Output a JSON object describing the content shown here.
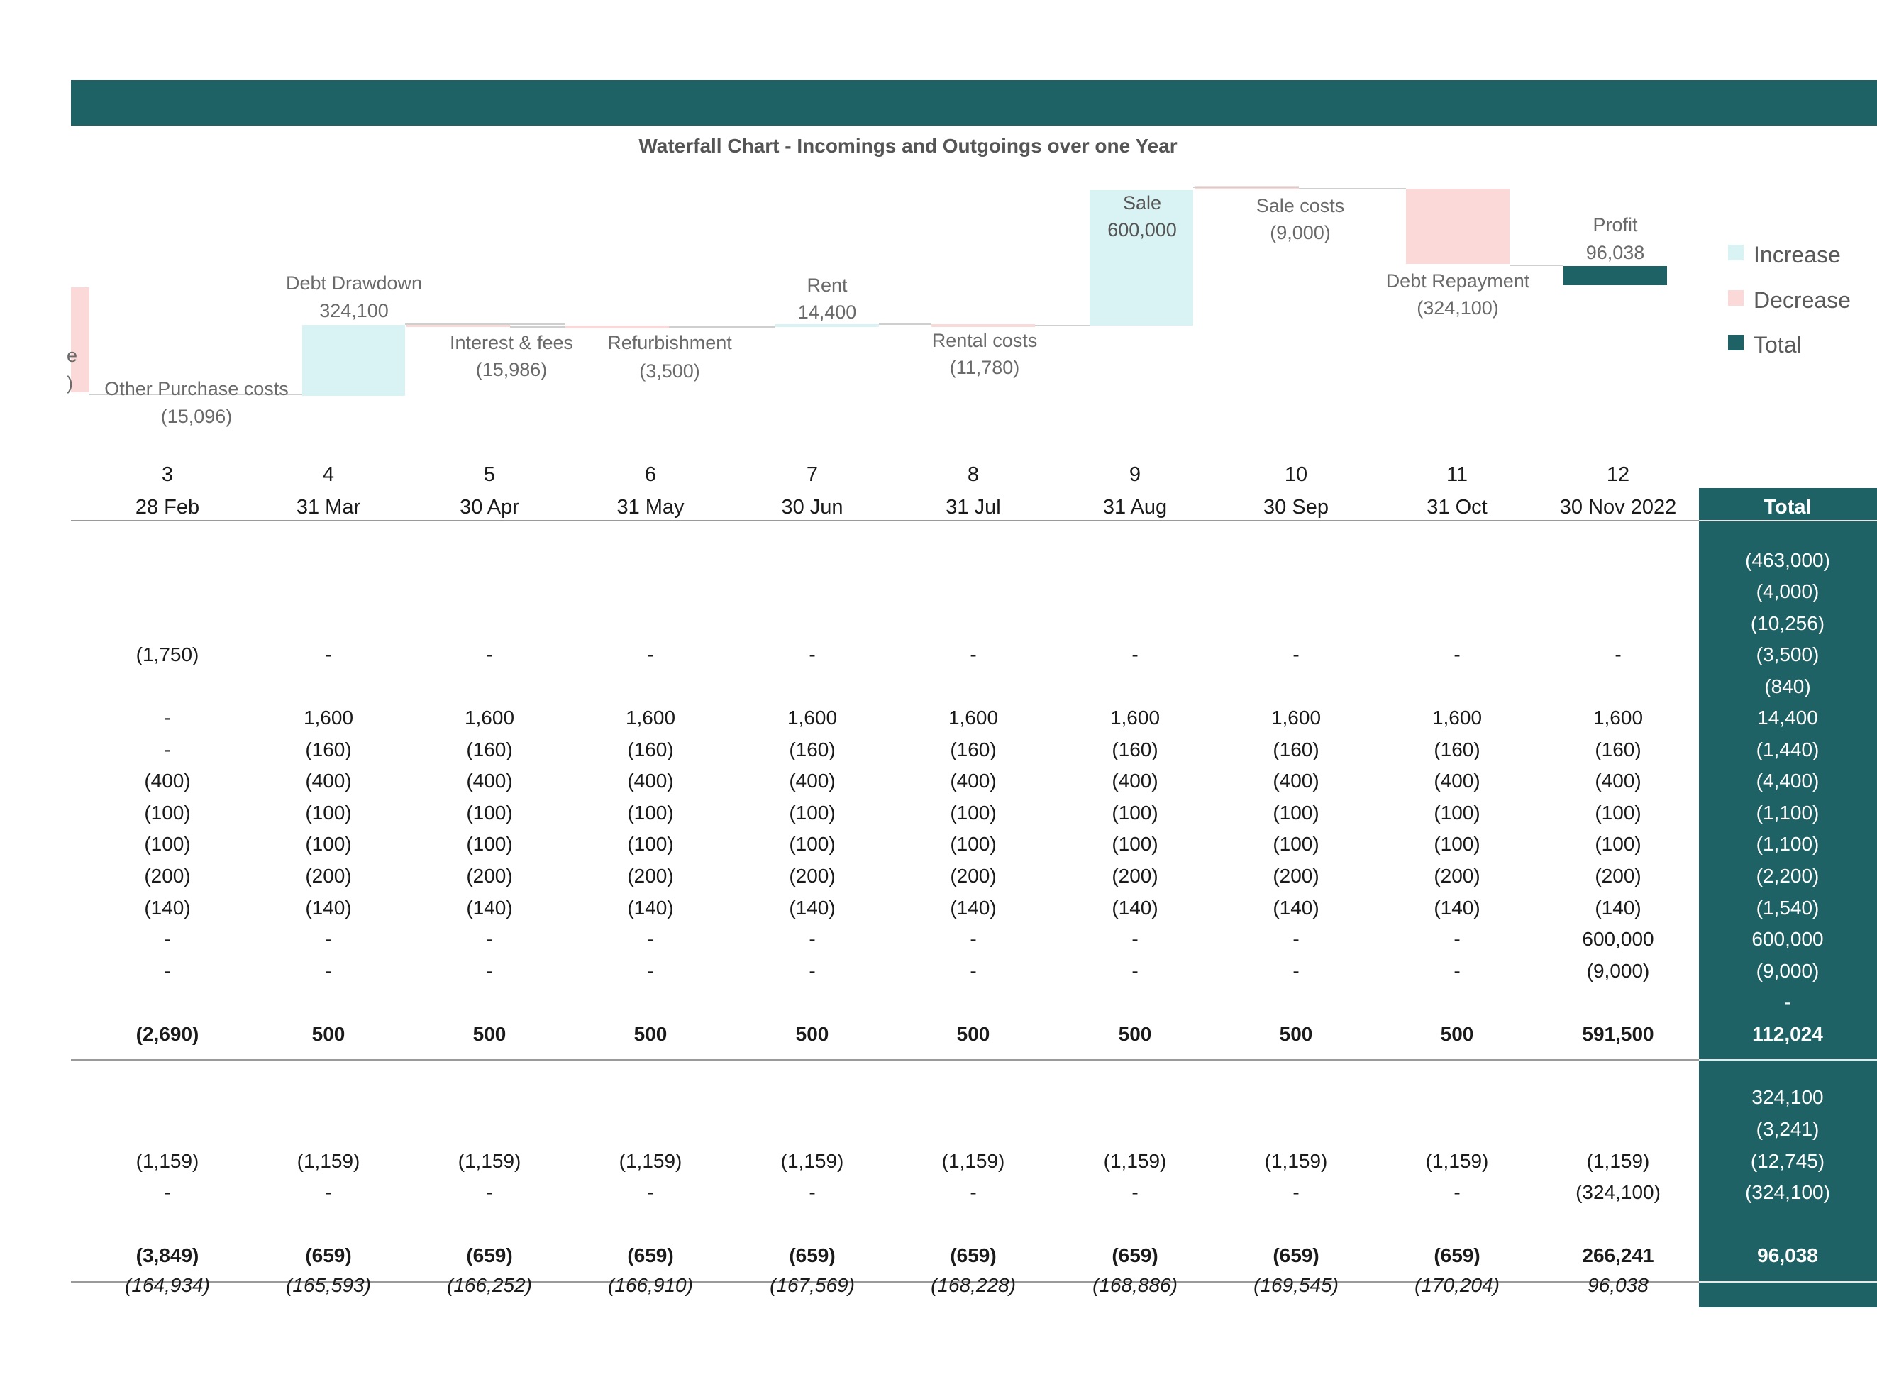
{
  "chart": {
    "title": "Waterfall Chart - Incomings and Outgoings over one Year",
    "labels": {
      "partial_left": [
        "e",
        ")"
      ],
      "other_purchase": [
        "Other Purchase costs",
        "(15,096)"
      ],
      "debt_drawdown": [
        "Debt Drawdown",
        "324,100"
      ],
      "interest_fees": [
        "Interest & fees",
        "(15,986)"
      ],
      "refurbishment": [
        "Refurbishment",
        "(3,500)"
      ],
      "rent": [
        "Rent",
        "14,400"
      ],
      "rental_costs": [
        "Rental costs",
        "(11,780)"
      ],
      "sale": [
        "Sale",
        "600,000"
      ],
      "sale_costs": [
        "Sale costs",
        "(9,000)"
      ],
      "debt_repayment": [
        "Debt Repayment",
        "(324,100)"
      ],
      "profit": [
        "Profit",
        "96,038"
      ]
    },
    "legend": [
      {
        "name": "Increase",
        "color": "#d9f2f4"
      },
      {
        "name": "Decrease",
        "color": "#fbd9d9"
      },
      {
        "name": "Total",
        "color": "#1f6266"
      }
    ]
  },
  "table": {
    "periods": [
      "3",
      "4",
      "5",
      "6",
      "7",
      "8",
      "9",
      "10",
      "11",
      "12"
    ],
    "dates": [
      "28 Feb",
      "31 Mar",
      "30 Apr",
      "31 May",
      "30 Jun",
      "31 Jul",
      "31 Aug",
      "30 Sep",
      "31 Oct",
      "30 Nov 2022"
    ],
    "total_header": "Total",
    "rows": [
      {
        "cells": [
          "",
          "",
          "",
          "",
          "",
          "",
          "",
          "",
          "",
          ""
        ],
        "total": "(463,000)"
      },
      {
        "cells": [
          "",
          "",
          "",
          "",
          "",
          "",
          "",
          "",
          "",
          ""
        ],
        "total": "(4,000)"
      },
      {
        "cells": [
          "",
          "",
          "",
          "",
          "",
          "",
          "",
          "",
          "",
          ""
        ],
        "total": "(10,256)"
      },
      {
        "cells": [
          "(1,750)",
          "-",
          "-",
          "-",
          "-",
          "-",
          "-",
          "-",
          "-",
          "-"
        ],
        "total": "(3,500)"
      },
      {
        "cells": [
          "",
          "",
          "",
          "",
          "",
          "",
          "",
          "",
          "",
          ""
        ],
        "total": "(840)"
      },
      {
        "cells": [
          "-",
          "1,600",
          "1,600",
          "1,600",
          "1,600",
          "1,600",
          "1,600",
          "1,600",
          "1,600",
          "1,600"
        ],
        "total": "14,400"
      },
      {
        "cells": [
          "-",
          "(160)",
          "(160)",
          "(160)",
          "(160)",
          "(160)",
          "(160)",
          "(160)",
          "(160)",
          "(160)"
        ],
        "total": "(1,440)"
      },
      {
        "cells": [
          "(400)",
          "(400)",
          "(400)",
          "(400)",
          "(400)",
          "(400)",
          "(400)",
          "(400)",
          "(400)",
          "(400)"
        ],
        "total": "(4,400)"
      },
      {
        "cells": [
          "(100)",
          "(100)",
          "(100)",
          "(100)",
          "(100)",
          "(100)",
          "(100)",
          "(100)",
          "(100)",
          "(100)"
        ],
        "total": "(1,100)"
      },
      {
        "cells": [
          "(100)",
          "(100)",
          "(100)",
          "(100)",
          "(100)",
          "(100)",
          "(100)",
          "(100)",
          "(100)",
          "(100)"
        ],
        "total": "(1,100)"
      },
      {
        "cells": [
          "(200)",
          "(200)",
          "(200)",
          "(200)",
          "(200)",
          "(200)",
          "(200)",
          "(200)",
          "(200)",
          "(200)"
        ],
        "total": "(2,200)"
      },
      {
        "cells": [
          "(140)",
          "(140)",
          "(140)",
          "(140)",
          "(140)",
          "(140)",
          "(140)",
          "(140)",
          "(140)",
          "(140)"
        ],
        "total": "(1,540)"
      },
      {
        "cells": [
          "-",
          "-",
          "-",
          "-",
          "-",
          "-",
          "-",
          "-",
          "-",
          "600,000"
        ],
        "total": "600,000"
      },
      {
        "cells": [
          "-",
          "-",
          "-",
          "-",
          "-",
          "-",
          "-",
          "-",
          "-",
          "(9,000)"
        ],
        "total": "(9,000)"
      },
      {
        "cells": [
          "",
          "",
          "",
          "",
          "",
          "",
          "",
          "",
          "",
          ""
        ],
        "total": "-"
      },
      {
        "cells": [
          "(2,690)",
          "500",
          "500",
          "500",
          "500",
          "500",
          "500",
          "500",
          "500",
          "591,500"
        ],
        "total": "112,024",
        "bold": true
      },
      {
        "cells": [
          "",
          "",
          "",
          "",
          "",
          "",
          "",
          "",
          "",
          ""
        ],
        "total": "",
        "gap": true
      },
      {
        "cells": [
          "",
          "",
          "",
          "",
          "",
          "",
          "",
          "",
          "",
          ""
        ],
        "total": "324,100"
      },
      {
        "cells": [
          "",
          "",
          "",
          "",
          "",
          "",
          "",
          "",
          "",
          ""
        ],
        "total": "(3,241)"
      },
      {
        "cells": [
          "(1,159)",
          "(1,159)",
          "(1,159)",
          "(1,159)",
          "(1,159)",
          "(1,159)",
          "(1,159)",
          "(1,159)",
          "(1,159)",
          "(1,159)"
        ],
        "total": "(12,745)"
      },
      {
        "cells": [
          "-",
          "-",
          "-",
          "-",
          "-",
          "-",
          "-",
          "-",
          "-",
          "(324,100)"
        ],
        "total": "(324,100)"
      },
      {
        "cells": [
          "",
          "",
          "",
          "",
          "",
          "",
          "",
          "",
          "",
          ""
        ],
        "total": "",
        "gap": true
      },
      {
        "cells": [
          "(3,849)",
          "(659)",
          "(659)",
          "(659)",
          "(659)",
          "(659)",
          "(659)",
          "(659)",
          "(659)",
          "266,241"
        ],
        "total": "96,038",
        "bold": true
      },
      {
        "cells": [
          "(164,934)",
          "(165,593)",
          "(166,252)",
          "(166,910)",
          "(167,569)",
          "(168,228)",
          "(168,886)",
          "(169,545)",
          "(170,204)",
          "96,038"
        ],
        "total": "",
        "italic": true
      }
    ]
  }
}
